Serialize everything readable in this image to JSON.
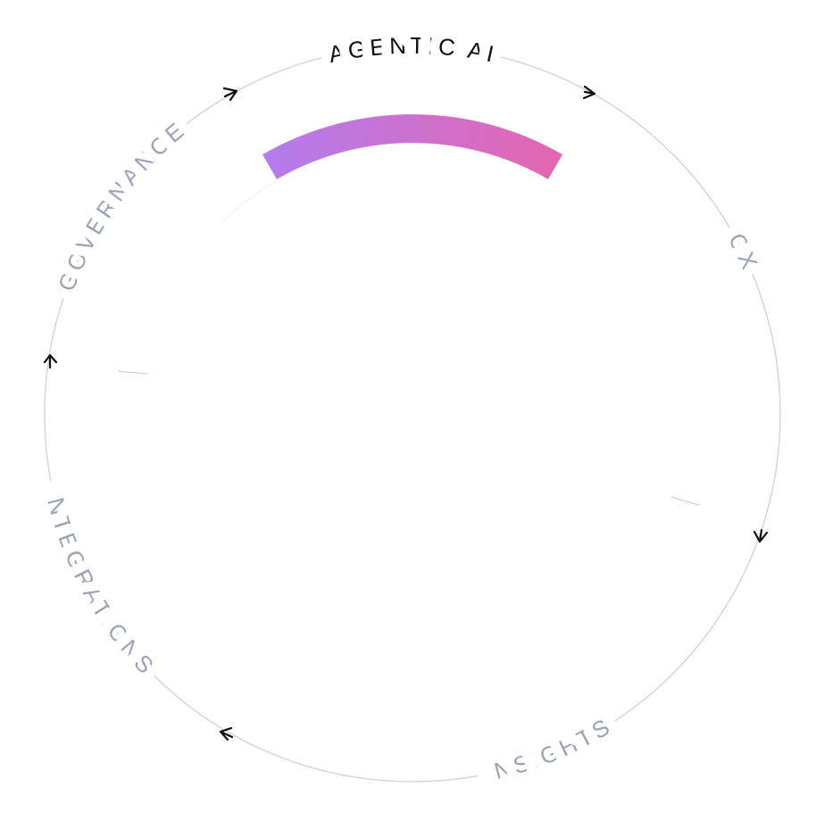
{
  "labels": {
    "top": "AGENTIC AI",
    "right": "CX",
    "bottom": "INSIGHTS",
    "left_bottom": "INTEGRATIONS",
    "left_top": "GOVERNANCE"
  }
}
